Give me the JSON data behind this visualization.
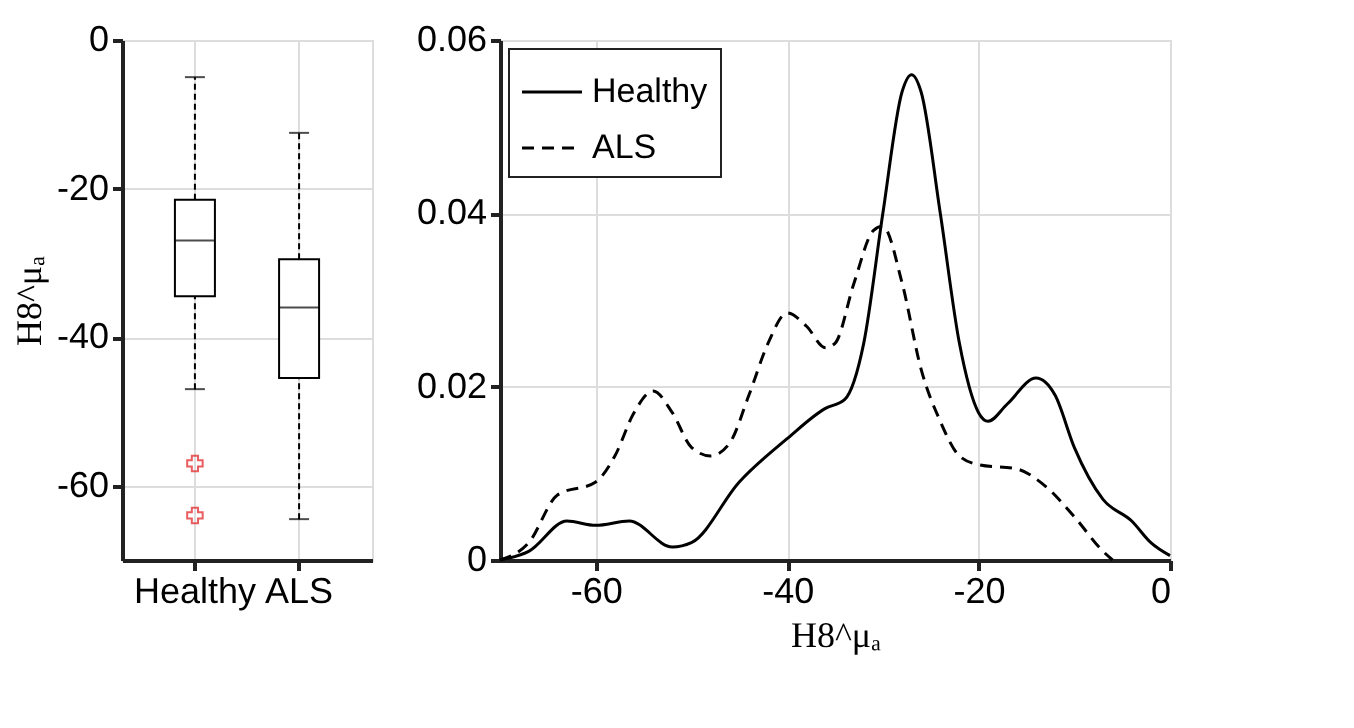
{
  "chart_data": [
    {
      "type": "box",
      "categories": [
        "Healthy",
        "ALS"
      ],
      "ylabel": "H8^μₐ",
      "ylim": [
        -70,
        0
      ],
      "yticks": [
        -60,
        -40,
        -20,
        0
      ],
      "grid": true,
      "boxes": [
        {
          "low": -47,
          "q1": -34.5,
          "median": -27,
          "q3": -21.5,
          "high": -5,
          "outliers": [
            -57,
            -64
          ]
        },
        {
          "low": -64.5,
          "q1": -45.5,
          "median": -36,
          "q3": -29.5,
          "high": -12.5
        }
      ]
    },
    {
      "type": "line",
      "xlabel": "H8^μₐ",
      "xlim": [
        -70,
        0
      ],
      "xticks": [
        -60,
        -40,
        -20,
        0
      ],
      "ylim": [
        0,
        0.06
      ],
      "yticks": [
        0,
        0.02,
        0.04,
        0.06
      ],
      "grid": true,
      "legend": "top left",
      "series": [
        {
          "name": "Healthy",
          "color": "#000000",
          "line_style": "solid",
          "x": [
            -70,
            -67,
            -63,
            -60,
            -56.5,
            -52,
            -50,
            -45,
            -40,
            -36,
            -34,
            -32,
            -30,
            -28,
            -27,
            -26,
            -24,
            -22,
            -20,
            -19,
            -17,
            -14,
            -12,
            -10,
            -7,
            -4,
            -2,
            0
          ],
          "values": [
            0,
            0.001,
            0.0045,
            0.004,
            0.0045,
            0.0015,
            0.002,
            0.009,
            0.014,
            0.0175,
            0.0185,
            0.025,
            0.04,
            0.054,
            0.056,
            0.054,
            0.04,
            0.025,
            0.017,
            0.016,
            0.018,
            0.021,
            0.019,
            0.013,
            0.007,
            0.0045,
            0.002,
            0.0005
          ]
        },
        {
          "name": "ALS",
          "color": "#000000",
          "line_style": "dashed",
          "x": [
            -70,
            -67,
            -64,
            -60,
            -58,
            -56,
            -54,
            -52,
            -50,
            -48,
            -46,
            -44,
            -42,
            -40,
            -38,
            -36,
            -35,
            -33,
            -31,
            -30,
            -28,
            -26,
            -24,
            -22,
            -20,
            -16,
            -13,
            -10,
            -7,
            -6
          ],
          "values": [
            0,
            0.002,
            0.0075,
            0.009,
            0.012,
            0.017,
            0.0195,
            0.017,
            0.013,
            0.012,
            0.0135,
            0.019,
            0.025,
            0.0285,
            0.027,
            0.0245,
            0.025,
            0.032,
            0.038,
            0.0385,
            0.032,
            0.022,
            0.016,
            0.012,
            0.011,
            0.0105,
            0.0085,
            0.005,
            0.001,
            0
          ]
        }
      ]
    }
  ]
}
